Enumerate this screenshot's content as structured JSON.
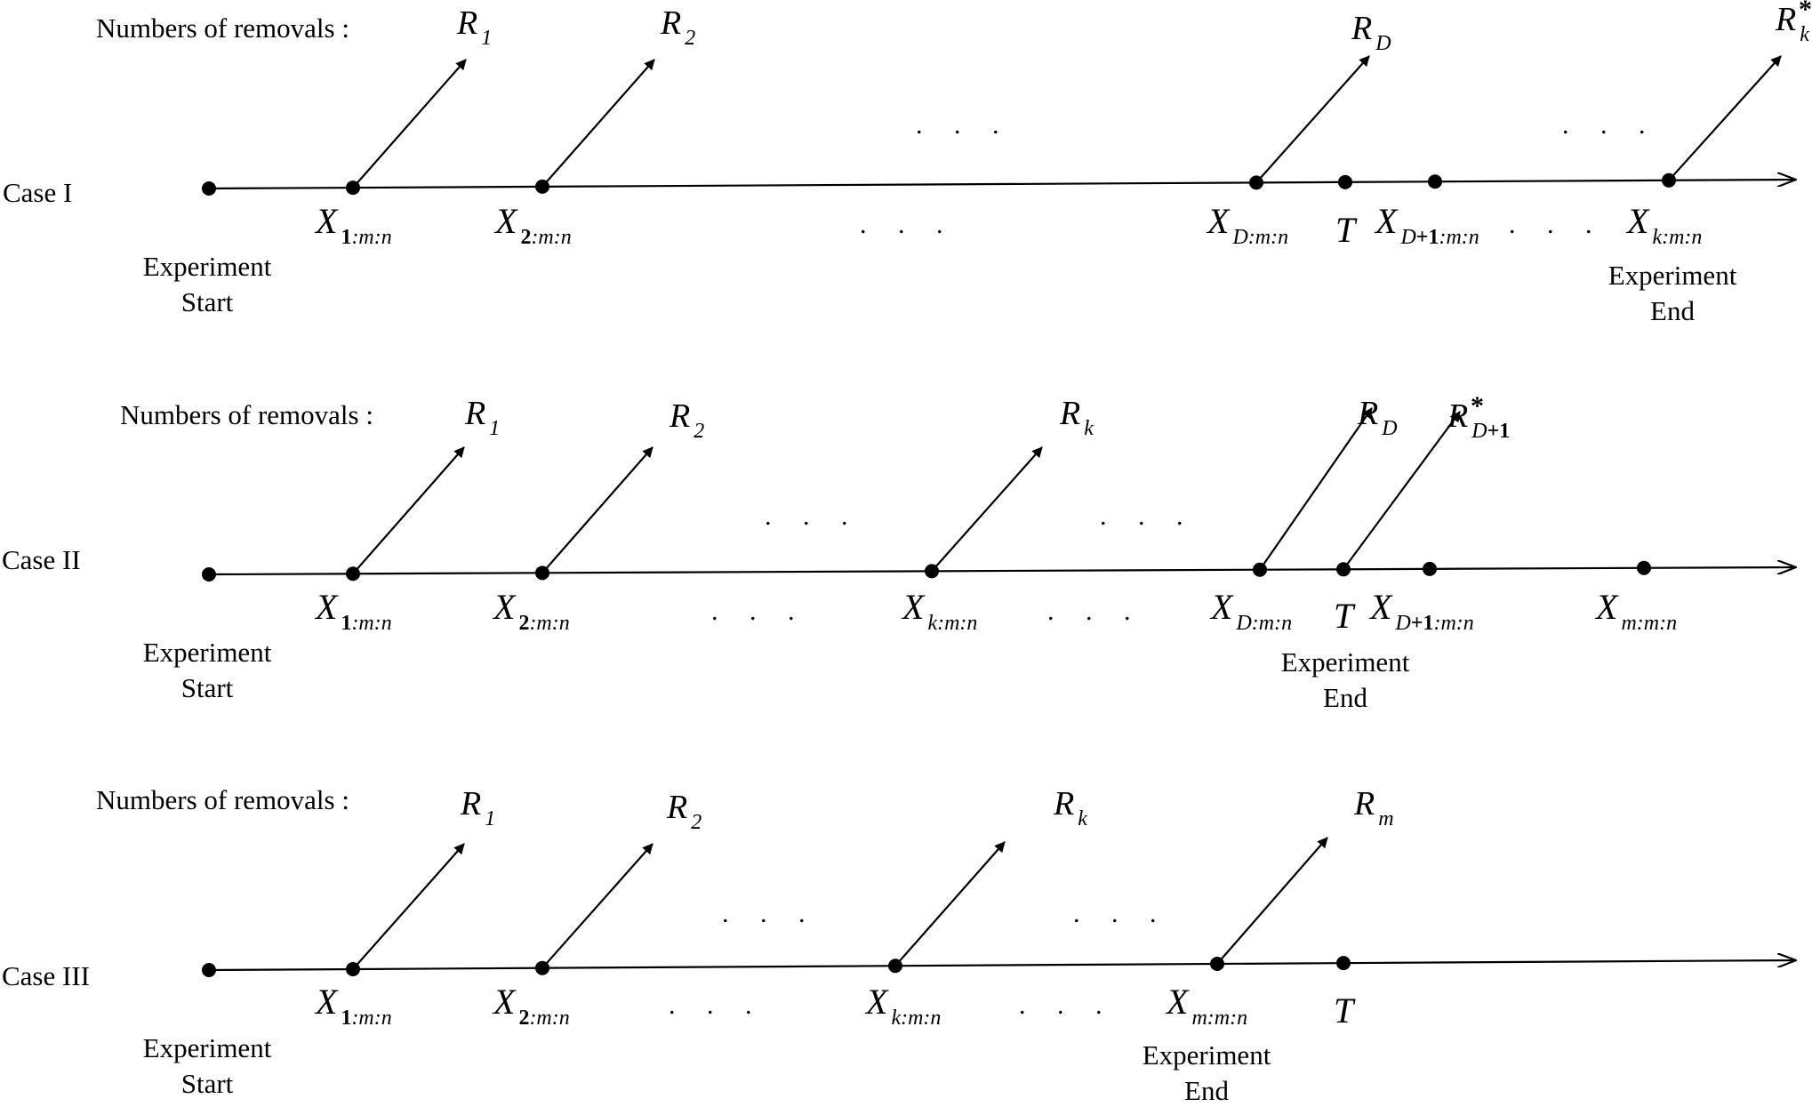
{
  "colors": {
    "ink": "#000000",
    "background": "#ffffff"
  },
  "diagram": {
    "type": "progressive-censoring-timelines",
    "cases": [
      {
        "case_label": "Case I",
        "removals_label": "Numbers of removals :",
        "start_label": [
          "Experiment",
          "Start"
        ],
        "end_label": [
          "Experiment",
          "End"
        ],
        "points": [
          {
            "name": "X",
            "sub": [
              [
                "1",
                true
              ],
              [
                ":m:n",
                false
              ]
            ]
          },
          {
            "name": "X",
            "sub": [
              [
                "2",
                true
              ],
              [
                ":m:n",
                false
              ]
            ]
          },
          {
            "name": "X",
            "sub": [
              [
                "D:m:n",
                false
              ]
            ]
          },
          {
            "name": "T",
            "sub": []
          },
          {
            "name": "X",
            "sub": [
              [
                "D",
                false
              ],
              [
                "+1",
                true
              ],
              [
                ":m:n",
                false
              ]
            ]
          },
          {
            "name": "X",
            "sub": [
              [
                "k:m:n",
                false
              ]
            ]
          }
        ],
        "removals": [
          {
            "name": "R",
            "sub": [
              [
                "1",
                false
              ]
            ],
            "star": false
          },
          {
            "name": "R",
            "sub": [
              [
                "2",
                false
              ]
            ],
            "star": false
          },
          {
            "name": "R",
            "sub": [
              [
                "D",
                false
              ]
            ],
            "star": false
          },
          {
            "name": "R",
            "sub": [
              [
                "k",
                false
              ]
            ],
            "star": true
          }
        ],
        "dots": ". . ."
      },
      {
        "case_label": "Case II",
        "removals_label": "Numbers of removals :",
        "start_label": [
          "Experiment",
          "Start"
        ],
        "end_label": [
          "Experiment",
          "End"
        ],
        "points": [
          {
            "name": "X",
            "sub": [
              [
                "1",
                true
              ],
              [
                ":m:n",
                false
              ]
            ]
          },
          {
            "name": "X",
            "sub": [
              [
                "2",
                true
              ],
              [
                ":m:n",
                false
              ]
            ]
          },
          {
            "name": "X",
            "sub": [
              [
                "k:m:n",
                false
              ]
            ]
          },
          {
            "name": "X",
            "sub": [
              [
                "D:m:n",
                false
              ]
            ]
          },
          {
            "name": "T",
            "sub": []
          },
          {
            "name": "X",
            "sub": [
              [
                "D",
                false
              ],
              [
                "+1",
                true
              ],
              [
                ":m:n",
                false
              ]
            ]
          },
          {
            "name": "X",
            "sub": [
              [
                "m:m:n",
                false
              ]
            ]
          }
        ],
        "removals": [
          {
            "name": "R",
            "sub": [
              [
                "1",
                false
              ]
            ],
            "star": false
          },
          {
            "name": "R",
            "sub": [
              [
                "2",
                false
              ]
            ],
            "star": false
          },
          {
            "name": "R",
            "sub": [
              [
                "k",
                false
              ]
            ],
            "star": false
          },
          {
            "name": "R",
            "sub": [
              [
                "D",
                false
              ]
            ],
            "star": false
          },
          {
            "name": "R",
            "sub": [
              [
                "D",
                false
              ],
              [
                "+1",
                true
              ]
            ],
            "star": true
          }
        ],
        "dots": ". . ."
      },
      {
        "case_label": "Case III",
        "removals_label": "Numbers of removals :",
        "start_label": [
          "Experiment",
          "Start"
        ],
        "end_label": [
          "Experiment",
          "End"
        ],
        "points": [
          {
            "name": "X",
            "sub": [
              [
                "1",
                true
              ],
              [
                ":m:n",
                false
              ]
            ]
          },
          {
            "name": "X",
            "sub": [
              [
                "2",
                true
              ],
              [
                ":m:n",
                false
              ]
            ]
          },
          {
            "name": "X",
            "sub": [
              [
                "k:m:n",
                false
              ]
            ]
          },
          {
            "name": "X",
            "sub": [
              [
                "m:m:n",
                false
              ]
            ]
          },
          {
            "name": "T",
            "sub": []
          }
        ],
        "removals": [
          {
            "name": "R",
            "sub": [
              [
                "1",
                false
              ]
            ],
            "star": false
          },
          {
            "name": "R",
            "sub": [
              [
                "2",
                false
              ]
            ],
            "star": false
          },
          {
            "name": "R",
            "sub": [
              [
                "k",
                false
              ]
            ],
            "star": false
          },
          {
            "name": "R",
            "sub": [
              [
                "m",
                false
              ]
            ],
            "star": false
          }
        ],
        "dots": ". . ."
      }
    ]
  }
}
